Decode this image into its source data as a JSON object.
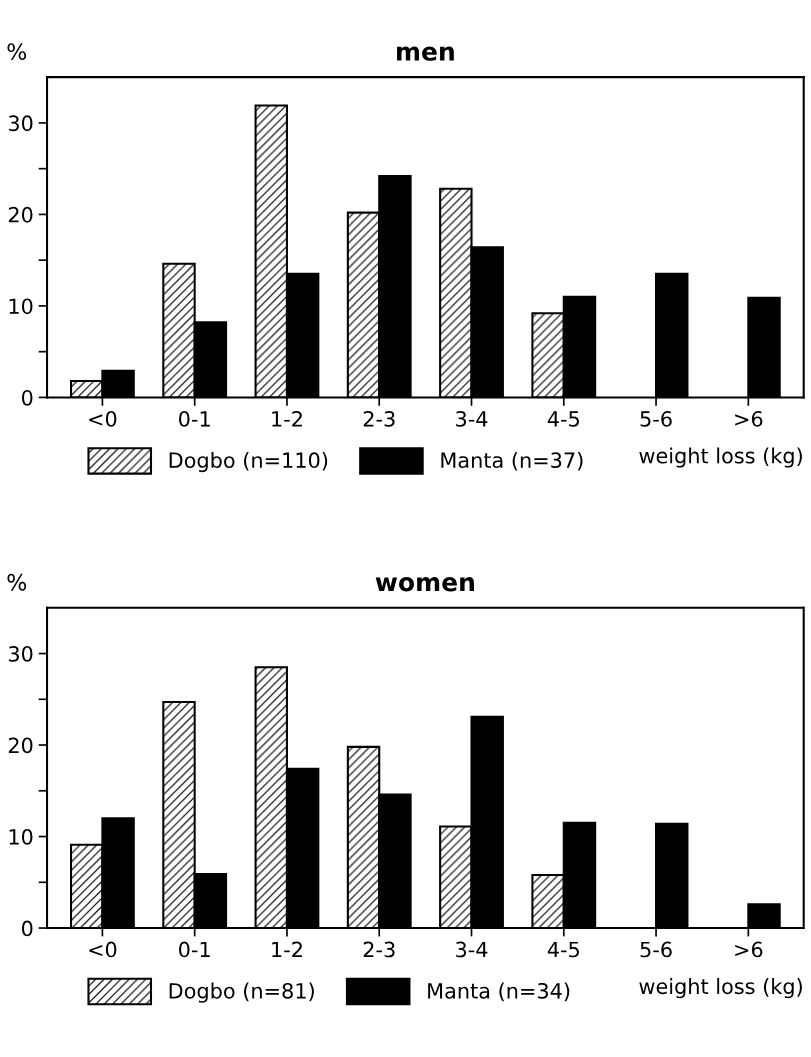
{
  "chart_data": [
    {
      "type": "bar",
      "title": "men",
      "ylabel": "%",
      "xlabel": "weight loss (kg)",
      "categories": [
        "<0",
        "0-1",
        "1-2",
        "2-3",
        "3-4",
        "4-5",
        "5-6",
        ">6"
      ],
      "series": [
        {
          "name": "Dogbo (n=110)",
          "color": "#ffffff",
          "values": [
            1.8,
            14.6,
            31.9,
            20.2,
            22.8,
            9.2,
            0,
            0
          ]
        },
        {
          "name": "Manta (n=37)",
          "color": "#000000",
          "values": [
            2.9,
            8.2,
            13.5,
            24.2,
            16.4,
            11.0,
            13.5,
            10.9
          ]
        }
      ],
      "ylim": [
        0,
        35
      ],
      "yticks": [
        0,
        {
          "value": 5,
          "label": null
        },
        10,
        {
          "value": 15,
          "label": null
        },
        20,
        {
          "value": 25,
          "label": null
        },
        30
      ],
      "grid": false,
      "legend": "bottom left"
    },
    {
      "type": "bar",
      "title": "women",
      "ylabel": "%",
      "xlabel": "weight loss (kg)",
      "categories": [
        "<0",
        "0-1",
        "1-2",
        "2-3",
        "3-4",
        "4-5",
        "5-6",
        ">6"
      ],
      "series": [
        {
          "name": "Dogbo (n=81)",
          "color": "#ffffff",
          "values": [
            9.1,
            24.7,
            28.5,
            19.8,
            11.1,
            5.8,
            0,
            0
          ]
        },
        {
          "name": "Manta (n=34)",
          "color": "#000000",
          "values": [
            12.0,
            5.9,
            17.4,
            14.6,
            23.1,
            11.5,
            11.4,
            2.6
          ]
        }
      ],
      "ylim": [
        0,
        35
      ],
      "yticks": [
        0,
        {
          "value": 5,
          "label": null
        },
        10,
        {
          "value": 15,
          "label": null
        },
        20,
        {
          "value": 25,
          "label": null
        },
        30
      ],
      "grid": false,
      "legend": "bottom left"
    }
  ]
}
